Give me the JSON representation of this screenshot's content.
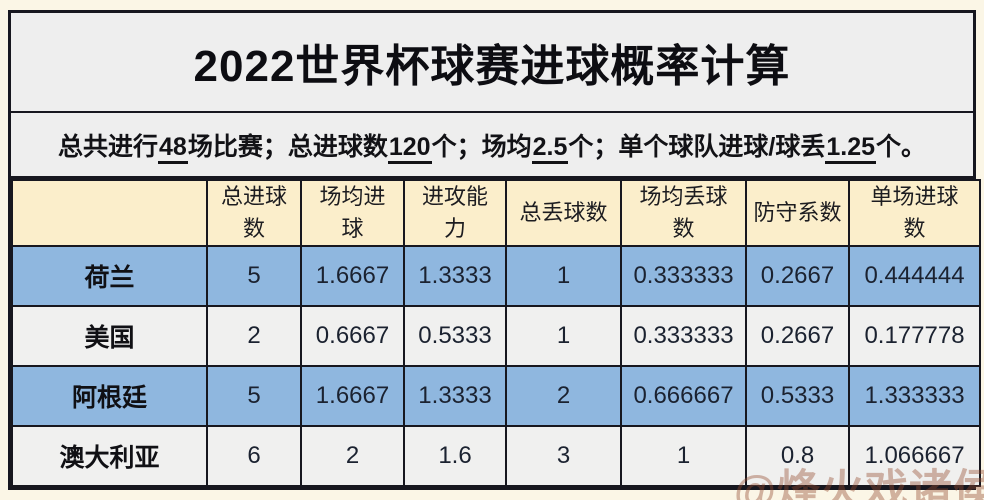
{
  "title": "2022世界杯球赛进球概率计算",
  "subtitle": {
    "segments": [
      {
        "text": "总共进行",
        "underline": false
      },
      {
        "text": "48",
        "underline": true
      },
      {
        "text": "场比赛；",
        "underline": false
      },
      {
        "text": "总进球数",
        "underline": false
      },
      {
        "text": "120",
        "underline": true
      },
      {
        "text": "个；",
        "underline": false
      },
      {
        "text": "场均",
        "underline": false
      },
      {
        "text": "2.5",
        "underline": true
      },
      {
        "text": "个；",
        "underline": false
      },
      {
        "text": "单个球队进球/球丢",
        "underline": false
      },
      {
        "text": "1.25",
        "underline": true
      },
      {
        "text": "个。",
        "underline": false
      }
    ]
  },
  "table": {
    "columns": [
      "",
      "总进球\n数",
      "场均进\n球",
      "进攻能\n力",
      "总丢球数",
      "场均丢球\n数",
      "防守系数",
      "单场进球\n数"
    ],
    "rows": [
      {
        "team": "荷兰",
        "values": [
          "5",
          "1.6667",
          "1.3333",
          "1",
          "0.333333",
          "0.2667",
          "0.444444"
        ]
      },
      {
        "team": "美国",
        "values": [
          "2",
          "0.6667",
          "0.5333",
          "1",
          "0.333333",
          "0.2667",
          "0.177778"
        ]
      },
      {
        "team": "阿根廷",
        "values": [
          "5",
          "1.6667",
          "1.3333",
          "2",
          "0.666667",
          "0.5333",
          "1.333333"
        ]
      },
      {
        "team": "澳大利亚",
        "values": [
          "6",
          "2",
          "1.6",
          "3",
          "1",
          "0.8",
          "1.066667"
        ]
      }
    ]
  },
  "watermark": "@烽火戏诸侯",
  "colors": {
    "header_bg": "#fbeecb",
    "row_blue": "#8fb7df",
    "row_gray": "#f0f0ef",
    "panel_gray": "#eeeeee",
    "border": "#17171f",
    "watermark": "rgba(148,74,48,0.40)"
  }
}
